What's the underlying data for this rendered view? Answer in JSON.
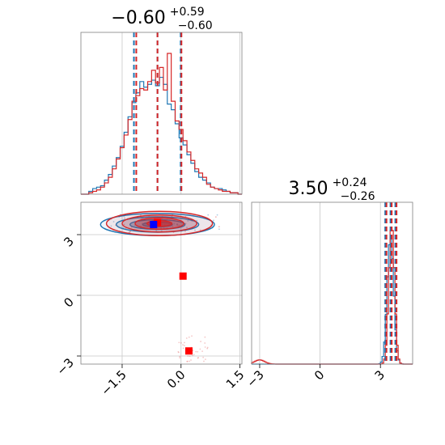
{
  "chart_data": [
    {
      "type": "histogram",
      "panel": "top-left",
      "parameter_index": 0,
      "title": {
        "value": "−0.60",
        "plus": "+0.59",
        "minus": "−0.60"
      },
      "xlim": [
        -2.55,
        1.55
      ],
      "grid": true,
      "series": [
        {
          "color": "#1f77b4",
          "bins": [
            -2.55,
            -2.45,
            -2.35,
            -2.25,
            -2.15,
            -2.05,
            -1.95,
            -1.85,
            -1.75,
            -1.65,
            -1.55,
            -1.45,
            -1.35,
            -1.25,
            -1.15,
            -1.05,
            -0.95,
            -0.85,
            -0.75,
            -0.65,
            -0.55,
            -0.45,
            -0.35,
            -0.25,
            -0.15,
            -0.05,
            0.05,
            0.15,
            0.25,
            0.35,
            0.45,
            0.55,
            0.65,
            0.75,
            0.85,
            0.95,
            1.05,
            1.15,
            1.25,
            1.35,
            1.45,
            1.55
          ],
          "density": [
            0.0,
            0.0,
            0.02,
            0.04,
            0.05,
            0.06,
            0.1,
            0.14,
            0.2,
            0.26,
            0.34,
            0.44,
            0.55,
            0.65,
            0.72,
            0.8,
            0.76,
            0.78,
            0.81,
            0.77,
            0.83,
            0.78,
            0.64,
            0.6,
            0.5,
            0.4,
            0.35,
            0.28,
            0.22,
            0.16,
            0.12,
            0.1,
            0.08,
            0.05,
            0.04,
            0.04,
            0.03,
            0.02,
            0.01,
            0.01,
            0.0
          ],
          "quantiles": [
            -1.2,
            -0.6,
            -0.01
          ]
        },
        {
          "color": "#d62728",
          "bins": [
            -2.55,
            -2.45,
            -2.35,
            -2.25,
            -2.15,
            -2.05,
            -1.95,
            -1.85,
            -1.75,
            -1.65,
            -1.55,
            -1.45,
            -1.35,
            -1.25,
            -1.15,
            -1.05,
            -0.95,
            -0.85,
            -0.75,
            -0.65,
            -0.55,
            -0.45,
            -0.35,
            -0.25,
            -0.15,
            -0.05,
            0.05,
            0.15,
            0.25,
            0.35,
            0.45,
            0.55,
            0.65,
            0.75,
            0.85,
            0.95,
            1.05,
            1.15,
            1.25,
            1.35,
            1.45,
            1.55
          ],
          "density": [
            0.0,
            0.0,
            0.01,
            0.02,
            0.03,
            0.05,
            0.08,
            0.12,
            0.18,
            0.25,
            0.33,
            0.42,
            0.53,
            0.66,
            0.7,
            0.75,
            0.74,
            0.8,
            0.88,
            0.79,
            0.9,
            0.74,
            1.0,
            0.66,
            0.52,
            0.46,
            0.38,
            0.3,
            0.24,
            0.18,
            0.15,
            0.12,
            0.07,
            0.05,
            0.04,
            0.03,
            0.02,
            0.02,
            0.01,
            0.01,
            0.0
          ],
          "quantiles": [
            -1.14,
            -0.6,
            0.01
          ]
        }
      ],
      "xticks": [
        -1.5,
        0.0,
        1.5
      ]
    },
    {
      "type": "contour",
      "panel": "bottom-left",
      "xlim": [
        -2.55,
        1.55
      ],
      "ylim": [
        -3.4,
        4.6
      ],
      "xticks": [
        -1.5,
        0.0,
        1.5
      ],
      "yticks": [
        -3,
        0,
        3
      ],
      "xtick_labels": [
        "−1.5",
        "0.0",
        "1.5"
      ],
      "ytick_labels": [
        "−3",
        "0",
        "3"
      ],
      "grid": true,
      "contours": [
        {
          "color": "#1f77b4",
          "center": [
            -0.6,
            3.5
          ],
          "levels": [
            {
              "rx": 1.45,
              "ry": 0.55,
              "fill": 0.12
            },
            {
              "rx": 1.05,
              "ry": 0.38,
              "fill": 0.3
            },
            {
              "rx": 0.7,
              "ry": 0.24,
              "fill": 0.55
            },
            {
              "rx": 0.38,
              "ry": 0.12,
              "fill": 0.85
            }
          ]
        },
        {
          "color": "#d62728",
          "center": [
            -0.55,
            3.55
          ],
          "levels": [
            {
              "rx": 1.35,
              "ry": 0.6,
              "fill": 0.12
            },
            {
              "rx": 0.95,
              "ry": 0.42,
              "fill": 0.32
            },
            {
              "rx": 0.62,
              "ry": 0.28,
              "fill": 0.55
            },
            {
              "rx": 0.32,
              "ry": 0.14,
              "fill": 0.85
            }
          ]
        }
      ],
      "markers": [
        {
          "x": -0.6,
          "y": 3.6,
          "color": "#ff0000"
        },
        {
          "x": -0.7,
          "y": 3.5,
          "color": "#0000ff"
        },
        {
          "x": 0.05,
          "y": 0.95,
          "color": "#ff0000"
        },
        {
          "x": 0.2,
          "y": -2.75,
          "color": "#ff0000"
        }
      ]
    },
    {
      "type": "histogram",
      "panel": "bottom-right",
      "parameter_index": 1,
      "title": {
        "value": "3.50",
        "plus": "+0.24",
        "minus": "−0.26"
      },
      "xlim": [
        -3.4,
        4.6
      ],
      "xticks": [
        -3,
        0,
        3
      ],
      "xtick_labels": [
        "−3",
        "0",
        "3"
      ],
      "grid": true,
      "series": [
        {
          "color": "#1f77b4",
          "peaks": [
            {
              "x": 3.5,
              "sigma": 0.16,
              "height": 0.92
            }
          ],
          "quantiles": [
            3.24,
            3.5,
            3.74
          ]
        },
        {
          "color": "#d62728",
          "peaks": [
            {
              "x": 3.56,
              "sigma": 0.14,
              "height": 1.0
            },
            {
              "x": -3.0,
              "sigma": 0.25,
              "height": 0.03
            }
          ],
          "quantiles": [
            3.3,
            3.56,
            3.8
          ]
        }
      ]
    }
  ]
}
